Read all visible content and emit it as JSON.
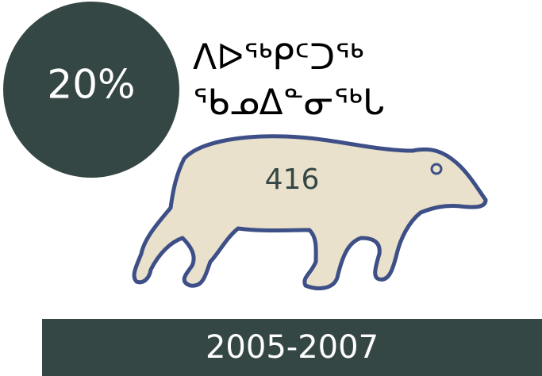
{
  "badge": "20%",
  "heading": [
    "ᐱᐅᖅᑭᑦᑐᖅ",
    "ᖃᓄᐃᓐᓂᖅᒐ"
  ],
  "count": "416",
  "period": "2005-2007"
}
